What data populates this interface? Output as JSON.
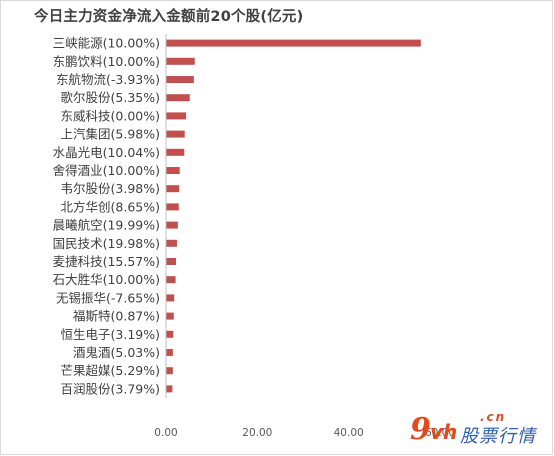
{
  "chart_data": {
    "type": "bar",
    "orientation": "horizontal",
    "title": "今日主力资金净流入金额前20个股(亿元)",
    "categories": [
      "三峡能源(10.00%)",
      "东鹏饮料(10.00%)",
      "东航物流(-3.93%)",
      "歌尔股份(5.35%)",
      "东威科技(0.00%)",
      "上汽集团(5.98%)",
      "水晶光电(10.04%)",
      "舍得酒业(10.00%)",
      "韦尔股份(3.98%)",
      "北方华创(8.65%)",
      "晨曦航空(19.99%)",
      "国民技术(19.98%)",
      "麦捷科技(15.57%)",
      "石大胜华(10.00%)",
      "无锡振华(-7.65%)",
      "福斯特(0.87%)",
      "恒生电子(3.19%)",
      "酒鬼酒(5.03%)",
      "芒果超媒(5.29%)",
      "百润股份(3.79%)"
    ],
    "values": [
      55.8,
      6.3,
      6.1,
      5.2,
      4.4,
      4.1,
      4.0,
      3.0,
      2.9,
      2.8,
      2.6,
      2.4,
      2.2,
      2.1,
      1.8,
      1.7,
      1.6,
      1.5,
      1.5,
      1.4
    ],
    "xlim": [
      0,
      60
    ],
    "xticks": [
      "0.00",
      "20.00",
      "40.00",
      "60.00"
    ],
    "xtick_values": [
      0,
      20,
      40,
      60
    ],
    "bar_color": "#c0504d",
    "grid": false,
    "legend": "none"
  },
  "watermark": {
    "nine": "9",
    "vh": "vh",
    "cn": ".cn",
    "text": "股票行情"
  },
  "colors": {
    "label": "#404040",
    "tick": "#595959",
    "axis": "#bfbfbf"
  }
}
